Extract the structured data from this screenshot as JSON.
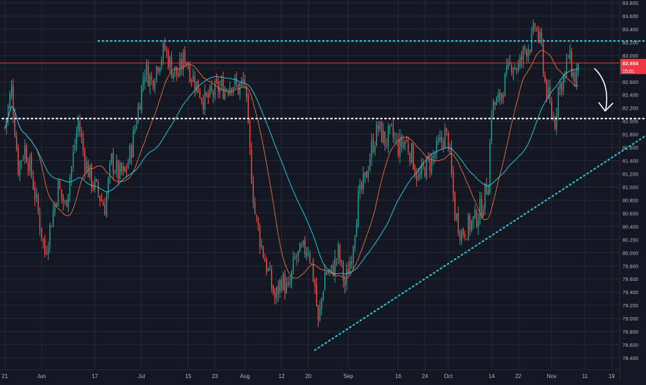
{
  "chart_data": {
    "type": "candlestick",
    "y_axis": {
      "min": 78.4,
      "max": 83.8,
      "ticks": [
        "78.400",
        "78.600",
        "78.800",
        "79.000",
        "79.200",
        "79.400",
        "79.600",
        "79.800",
        "80.000",
        "80.200",
        "80.400",
        "80.600",
        "80.800",
        "81.000",
        "81.200",
        "81.400",
        "81.600",
        "81.800",
        "82.000",
        "82.200",
        "82.400",
        "82.600",
        "82.800",
        "83.000",
        "83.200",
        "83.400",
        "83.600",
        "83.800"
      ]
    },
    "x_axis": {
      "ticks": [
        {
          "label": "21",
          "day": 0
        },
        {
          "label": "Jun",
          "day": 11
        },
        {
          "label": "17",
          "day": 27
        },
        {
          "label": "Jul",
          "day": 41
        },
        {
          "label": "15",
          "day": 55
        },
        {
          "label": "23",
          "day": 63
        },
        {
          "label": "Aug",
          "day": 72
        },
        {
          "label": "12",
          "day": 83
        },
        {
          "label": "20",
          "day": 91
        },
        {
          "label": "Sep",
          "day": 103
        },
        {
          "label": "16",
          "day": 118
        },
        {
          "label": "24",
          "day": 126
        },
        {
          "label": "Oct",
          "day": 133
        },
        {
          "label": "14",
          "day": 146
        },
        {
          "label": "22",
          "day": 154
        },
        {
          "label": "Nov",
          "day": 164
        },
        {
          "label": "11",
          "day": 174
        },
        {
          "label": "19",
          "day": 182
        }
      ]
    },
    "price_labels": {
      "current": {
        "text": "82.884",
        "value": 82.884,
        "color": "#f23645"
      },
      "countdown": {
        "text": "15:01",
        "value": 82.79,
        "color": "#f23645"
      }
    },
    "last_price": 82.884,
    "candle_anchors": [
      [
        0,
        81.9
      ],
      [
        2,
        82.5
      ],
      [
        4,
        81.3
      ],
      [
        6,
        81.6
      ],
      [
        8,
        81.2
      ],
      [
        10,
        80.6
      ],
      [
        12,
        80.0
      ],
      [
        14,
        80.5
      ],
      [
        16,
        81.0
      ],
      [
        18,
        80.7
      ],
      [
        20,
        81.3
      ],
      [
        22,
        82.0
      ],
      [
        24,
        81.4
      ],
      [
        26,
        81.1
      ],
      [
        28,
        80.9
      ],
      [
        30,
        80.7
      ],
      [
        32,
        81.4
      ],
      [
        34,
        81.2
      ],
      [
        36,
        81.2
      ],
      [
        38,
        81.6
      ],
      [
        40,
        82.2
      ],
      [
        42,
        82.8
      ],
      [
        44,
        82.6
      ],
      [
        46,
        82.9
      ],
      [
        48,
        83.1
      ],
      [
        50,
        82.8
      ],
      [
        52,
        82.7
      ],
      [
        54,
        83.0
      ],
      [
        56,
        82.7
      ],
      [
        58,
        82.5
      ],
      [
        60,
        82.3
      ],
      [
        62,
        82.4
      ],
      [
        64,
        82.5
      ],
      [
        66,
        82.5
      ],
      [
        68,
        82.6
      ],
      [
        70,
        82.5
      ],
      [
        72,
        82.6
      ],
      [
        73,
        81.8
      ],
      [
        75,
        80.6
      ],
      [
        77,
        80.1
      ],
      [
        79,
        79.7
      ],
      [
        81,
        79.3
      ],
      [
        83,
        79.6
      ],
      [
        85,
        79.4
      ],
      [
        87,
        79.9
      ],
      [
        89,
        80.0
      ],
      [
        91,
        80.1
      ],
      [
        93,
        79.5
      ],
      [
        94,
        78.9
      ],
      [
        96,
        79.7
      ],
      [
        98,
        79.7
      ],
      [
        100,
        80.0
      ],
      [
        102,
        79.5
      ],
      [
        104,
        80.0
      ],
      [
        106,
        80.8
      ],
      [
        108,
        81.1
      ],
      [
        110,
        81.6
      ],
      [
        112,
        81.9
      ],
      [
        114,
        81.7
      ],
      [
        116,
        81.8
      ],
      [
        118,
        81.6
      ],
      [
        120,
        81.7
      ],
      [
        122,
        81.5
      ],
      [
        124,
        81.1
      ],
      [
        126,
        81.3
      ],
      [
        128,
        81.4
      ],
      [
        130,
        81.6
      ],
      [
        132,
        81.8
      ],
      [
        133,
        81.7
      ],
      [
        135,
        80.6
      ],
      [
        137,
        80.3
      ],
      [
        139,
        80.4
      ],
      [
        141,
        80.5
      ],
      [
        143,
        80.7
      ],
      [
        145,
        81.1
      ],
      [
        146,
        82.2
      ],
      [
        148,
        82.3
      ],
      [
        150,
        82.6
      ],
      [
        152,
        82.9
      ],
      [
        154,
        82.8
      ],
      [
        156,
        83.1
      ],
      [
        158,
        83.2
      ],
      [
        159,
        83.45
      ],
      [
        161,
        83.1
      ],
      [
        162,
        82.6
      ],
      [
        164,
        82.1
      ],
      [
        165,
        82.0
      ],
      [
        166,
        82.5
      ],
      [
        168,
        82.7
      ],
      [
        169,
        83.0
      ],
      [
        171,
        82.6
      ],
      [
        172,
        82.9
      ]
    ],
    "sr_lines": [
      {
        "style": "dotted",
        "color": "#26c6da",
        "start_day": 28,
        "end_day": 195,
        "start_value": 83.22,
        "end_value": 83.22
      },
      {
        "style": "dotted",
        "color": "#ffffff",
        "start_day": -2,
        "end_day": 195,
        "start_value": 82.04,
        "end_value": 82.04
      },
      {
        "style": "dotted",
        "color": "#26c6da",
        "start_day": 93,
        "end_day": 195,
        "start_value": 78.52,
        "end_value": 81.87
      }
    ],
    "red_price_line_value": 82.884,
    "grid": true
  }
}
